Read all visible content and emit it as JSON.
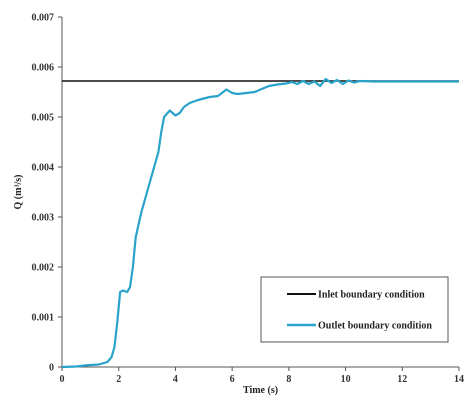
{
  "chart_data": {
    "type": "line",
    "title": "",
    "xlabel": "Time (s)",
    "ylabel": "Q (m³/s)",
    "xlim": [
      0,
      14
    ],
    "ylim": [
      0,
      0.007
    ],
    "x_ticks": [
      "0",
      "2",
      "4",
      "6",
      "8",
      "10",
      "12",
      "14"
    ],
    "y_ticks": [
      "0",
      "0.001",
      "0.002",
      "0.003",
      "0.004",
      "0.005",
      "0.006",
      "0.007"
    ],
    "grid": false,
    "legend_position": "bottom-right",
    "series": [
      {
        "name": "Inlet boundary condition",
        "color": "#111111",
        "x": [
          0,
          14
        ],
        "y": [
          0.00572,
          0.00572
        ]
      },
      {
        "name": "Outlet boundary condition",
        "color": "#29a3c9",
        "x": [
          0,
          0.5,
          0.8,
          1.0,
          1.3,
          1.6,
          1.75,
          1.85,
          1.95,
          2.05,
          2.15,
          2.3,
          2.4,
          2.5,
          2.6,
          2.8,
          3.0,
          3.2,
          3.4,
          3.5,
          3.6,
          3.8,
          4.0,
          4.15,
          4.3,
          4.5,
          4.8,
          5.0,
          5.2,
          5.5,
          5.8,
          6.0,
          6.2,
          6.5,
          6.8,
          7.0,
          7.3,
          7.6,
          7.9,
          8.1,
          8.3,
          8.5,
          8.7,
          8.9,
          9.1,
          9.3,
          9.5,
          9.7,
          9.9,
          10.1,
          10.3,
          10.5,
          11,
          12,
          13,
          14
        ],
        "y": [
          0,
          1e-05,
          3e-05,
          4e-05,
          5e-05,
          0.0001,
          0.0002,
          0.0004,
          0.0009,
          0.0015,
          0.00153,
          0.0015,
          0.0016,
          0.002,
          0.0026,
          0.0031,
          0.0035,
          0.0039,
          0.0043,
          0.0047,
          0.005,
          0.00513,
          0.00503,
          0.00508,
          0.0052,
          0.00528,
          0.00534,
          0.00537,
          0.0054,
          0.00542,
          0.00555,
          0.00548,
          0.00546,
          0.00548,
          0.0055,
          0.00555,
          0.00562,
          0.00565,
          0.00567,
          0.0057,
          0.00566,
          0.00572,
          0.00566,
          0.00571,
          0.00562,
          0.00576,
          0.00568,
          0.00574,
          0.00566,
          0.00573,
          0.00569,
          0.00572,
          0.00571,
          0.00571,
          0.00571,
          0.00571
        ]
      }
    ]
  }
}
